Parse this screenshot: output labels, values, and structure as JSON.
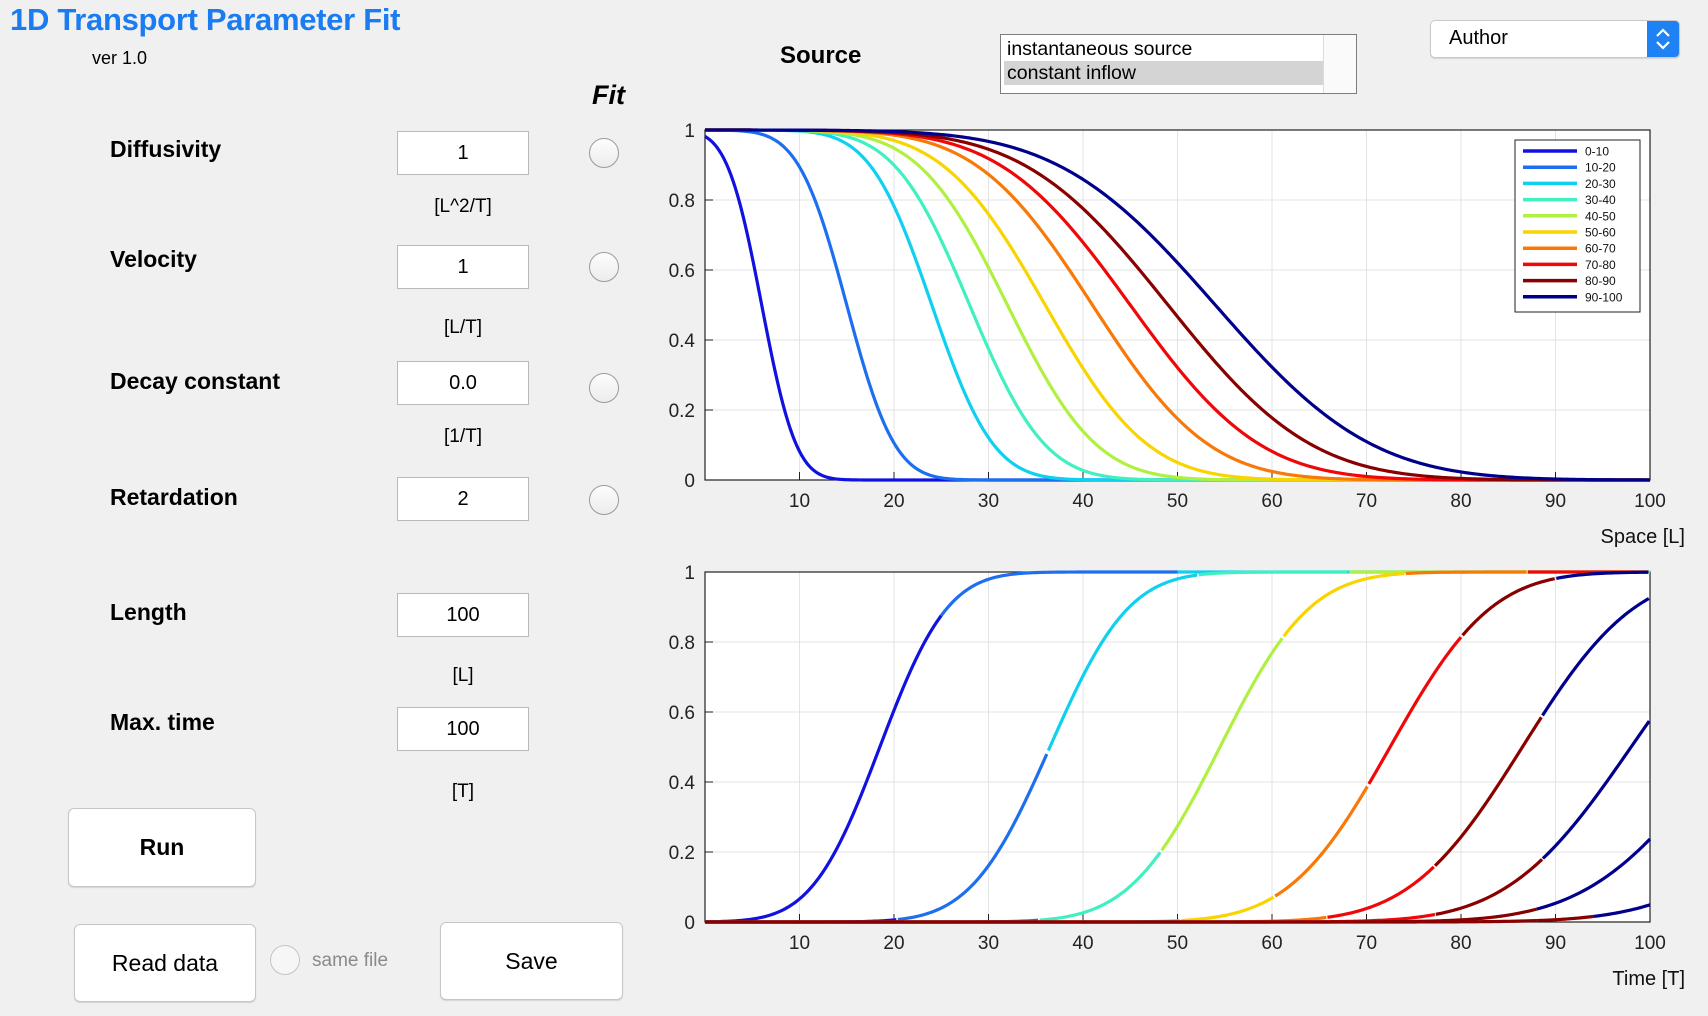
{
  "app": {
    "title": "1D Transport Parameter Fit",
    "version": "ver 1.0"
  },
  "fit_header": "Fit",
  "params": [
    {
      "label": "Diffusivity",
      "value": "1",
      "unit": "[L^2/T]",
      "fit_checked": false
    },
    {
      "label": "Velocity",
      "value": "1",
      "unit": "[L/T]",
      "fit_checked": false
    },
    {
      "label": "Decay constant",
      "value": "0.0",
      "unit": "[1/T]",
      "fit_checked": false
    },
    {
      "label": "Retardation",
      "value": "2",
      "unit": "",
      "fit_checked": false
    },
    {
      "label": "Length",
      "value": "100",
      "unit": "[L]"
    },
    {
      "label": "Max. time",
      "value": "100",
      "unit": "[T]"
    }
  ],
  "buttons": {
    "run": "Run",
    "read_data": "Read data",
    "save": "Save"
  },
  "same_file": {
    "label": "same file",
    "checked": false
  },
  "source": {
    "label": "Source",
    "options": [
      "instantaneous source",
      "constant inflow"
    ],
    "selected": "constant inflow"
  },
  "author_dropdown": {
    "selected": "Author"
  },
  "chart_data": [
    {
      "type": "line",
      "title": "",
      "xlabel": "Space [L]",
      "ylabel": "",
      "xlim": [
        0,
        100
      ],
      "ylim": [
        0,
        1
      ],
      "xticks": [
        10,
        20,
        30,
        40,
        50,
        60,
        70,
        80,
        90,
        100
      ],
      "yticks": [
        0,
        0.2,
        0.4,
        0.6,
        0.8,
        1
      ],
      "grid": true,
      "legend_position": "top-right",
      "series": [
        {
          "name": "0-10",
          "color": "#1111e0",
          "x_at_half": 6
        },
        {
          "name": "10-20",
          "color": "#1e6ff0",
          "x_at_half": 15
        },
        {
          "name": "20-30",
          "color": "#10d0f0",
          "x_at_half": 24
        },
        {
          "name": "30-40",
          "color": "#40f0c0",
          "x_at_half": 28
        },
        {
          "name": "40-50",
          "color": "#b0f040",
          "x_at_half": 32
        },
        {
          "name": "50-60",
          "color": "#f8d400",
          "x_at_half": 36
        },
        {
          "name": "60-70",
          "color": "#f87808",
          "x_at_half": 41
        },
        {
          "name": "70-80",
          "color": "#f00808",
          "x_at_half": 45
        },
        {
          "name": "80-90",
          "color": "#880000",
          "x_at_half": 49
        },
        {
          "name": "90-100",
          "color": "#00008b",
          "x_at_half": 54
        }
      ]
    },
    {
      "type": "line",
      "title": "",
      "xlabel": "Time [T]",
      "ylabel": "",
      "xlim": [
        0,
        100
      ],
      "ylim": [
        0,
        1
      ],
      "xticks": [
        10,
        20,
        30,
        40,
        50,
        60,
        70,
        80,
        90,
        100
      ],
      "yticks": [
        0,
        0.2,
        0.4,
        0.6,
        0.8,
        1
      ],
      "grid": true,
      "series": [
        {
          "x_at_half": 18.5,
          "color_segments": [
            "#1111e0",
            "#1e6ff0",
            "#10d0f0",
            "#40f0c0"
          ]
        },
        {
          "x_at_half": 36.5,
          "color_segments": [
            "#1111e0",
            "#1e6ff0",
            "#10d0f0",
            "#40f0c0",
            "#b0f040",
            "#f8d400"
          ]
        },
        {
          "x_at_half": 54.5,
          "color_segments": [
            "#1e6ff0",
            "#40f0c0",
            "#b0f040",
            "#f8d400",
            "#f87808",
            "#f00808"
          ]
        },
        {
          "x_at_half": 72.5,
          "color_segments": [
            "#40f0c0",
            "#f8d400",
            "#f87808",
            "#f00808",
            "#880000",
            "#00008b"
          ]
        },
        {
          "x_at_half": 86.5,
          "color_segments": [
            "#f87808",
            "#f00808",
            "#880000",
            "#00008b"
          ]
        },
        {
          "x_at_half": 98,
          "color_segments": [
            "#f00808",
            "#880000",
            "#00008b"
          ]
        },
        {
          "x_at_half": 108,
          "color_segments": [
            "#880000",
            "#00008b"
          ]
        },
        {
          "x_at_half": 120,
          "color_segments": [
            "#880000",
            "#00008b"
          ]
        }
      ]
    }
  ]
}
